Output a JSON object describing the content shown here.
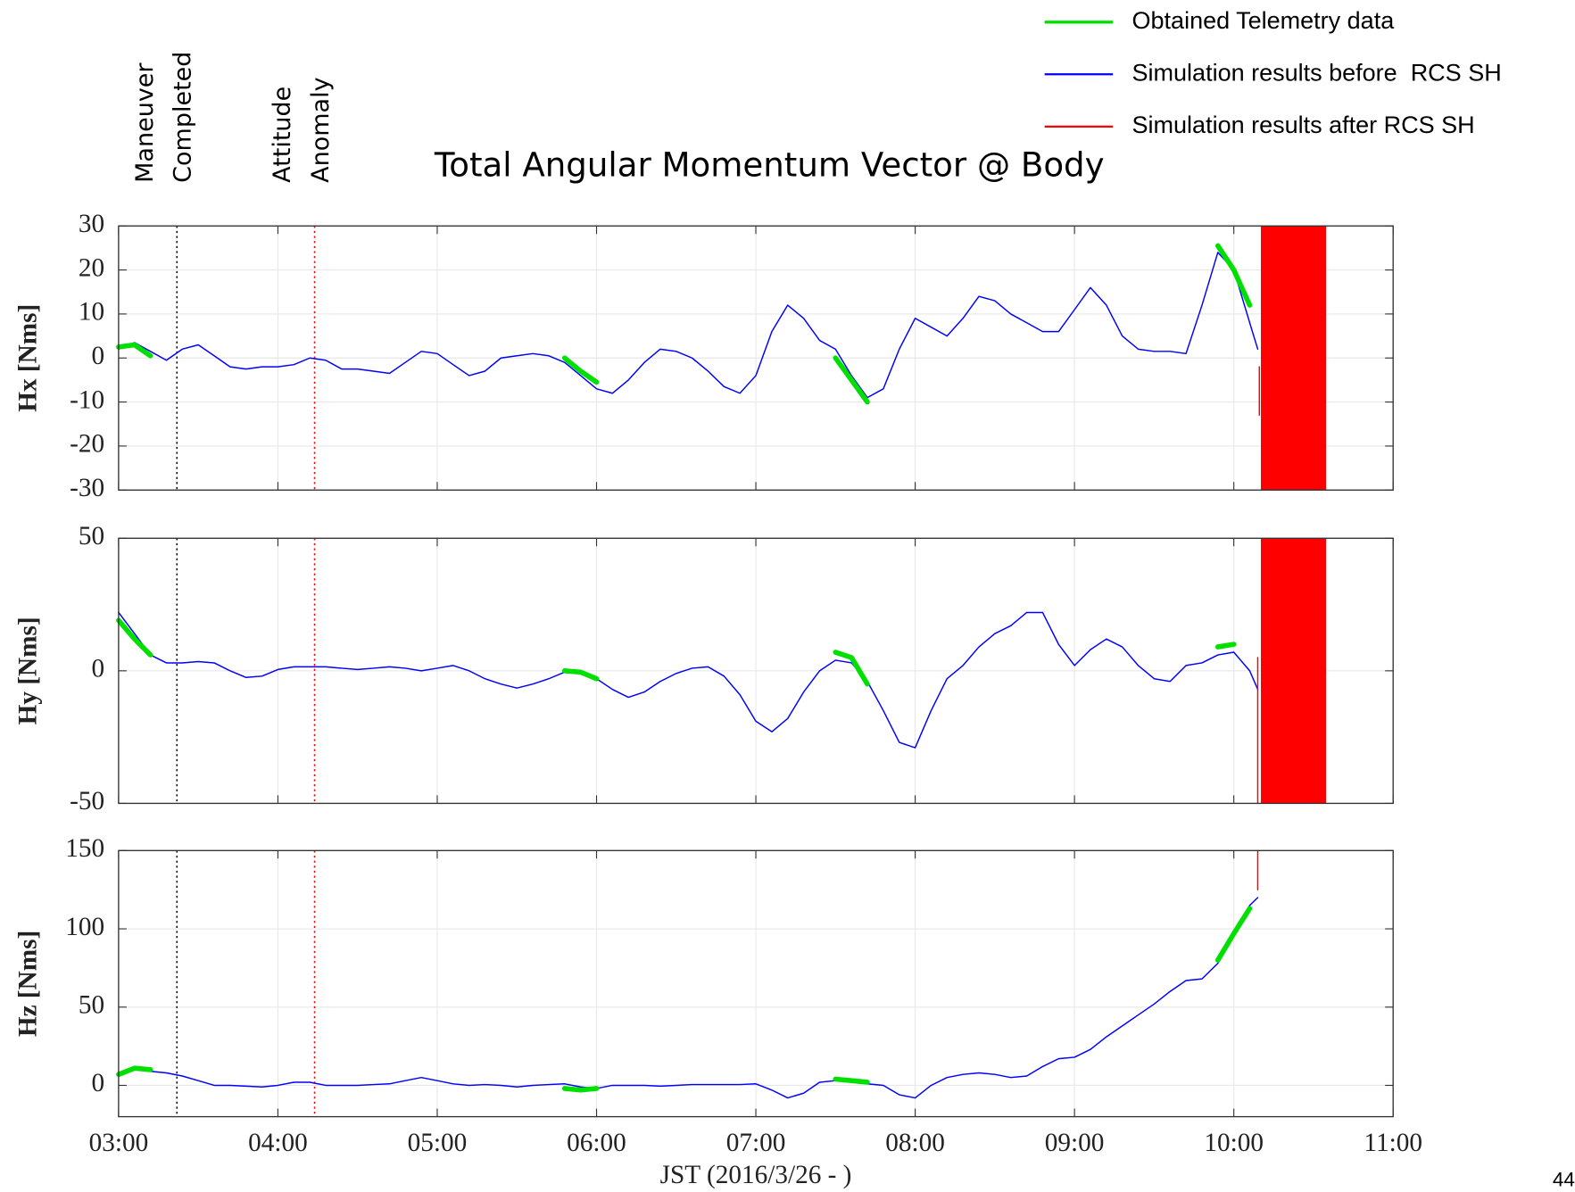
{
  "page_number": "44",
  "chart_data": [
    {
      "type": "line",
      "title": "Total Angular Momentum Vector @ Body",
      "ylabel": "Hx [Nms]",
      "annotations": [
        {
          "x": 3.366,
          "color": "#000000",
          "lines": [
            "Maneuver",
            "Completed"
          ]
        },
        {
          "x": 4.23,
          "color": "#ff0000",
          "lines": [
            "Attitude",
            "Anomaly"
          ]
        }
      ],
      "xlim": [
        3,
        11
      ],
      "ylim": [
        -30,
        30
      ],
      "yticks": [
        -30,
        -20,
        -10,
        0,
        10,
        20,
        30
      ],
      "grid": true,
      "x": [
        3,
        3.1,
        3.2,
        3.3,
        3.4,
        3.5,
        3.6,
        3.7,
        3.8,
        3.9,
        4,
        4.1,
        4.2,
        4.3,
        4.4,
        4.5,
        4.6,
        4.7,
        4.8,
        4.9,
        5,
        5.1,
        5.2,
        5.3,
        5.4,
        5.5,
        5.6,
        5.7,
        5.8,
        5.9,
        6,
        6.1,
        6.2,
        6.3,
        6.4,
        6.5,
        6.6,
        6.7,
        6.8,
        6.9,
        7,
        7.1,
        7.2,
        7.3,
        7.4,
        7.5,
        7.6,
        7.7,
        7.8,
        7.9,
        8,
        8.1,
        8.2,
        8.3,
        8.4,
        8.5,
        8.6,
        8.7,
        8.8,
        8.9,
        9,
        9.1,
        9.2,
        9.3,
        9.4,
        9.5,
        9.6,
        9.7,
        9.8,
        9.9,
        10,
        10.1,
        10.15
      ],
      "series": [
        {
          "name": "Simulation results before  RCS SH",
          "color": "#0000ff",
          "values": [
            2,
            3.5,
            1.5,
            -0.5,
            2,
            3,
            0.5,
            -2,
            -2.5,
            -2,
            -2,
            -1.5,
            0,
            -0.5,
            -2.5,
            -2.5,
            -3,
            -3.5,
            -1,
            1.5,
            1,
            -1.5,
            -4,
            -3,
            0,
            0.5,
            1,
            0.5,
            -1,
            -4,
            -7,
            -8,
            -5,
            -1,
            2,
            1.5,
            0,
            -3,
            -6.5,
            -8,
            -4,
            6,
            12,
            9,
            4,
            2,
            -4,
            -9,
            -7,
            2,
            9,
            7,
            5,
            9,
            14,
            13,
            10,
            8,
            6,
            6,
            11,
            16,
            12,
            5,
            2,
            1.5,
            1.5,
            1,
            12,
            24,
            20,
            8,
            2
          ]
        },
        {
          "name": "Obtained Telemetry data",
          "color": "#00e000",
          "values": [
            2.5,
            3,
            0.5,
            null,
            null,
            null,
            null,
            null,
            null,
            null,
            null,
            null,
            null,
            null,
            null,
            null,
            null,
            null,
            null,
            null,
            null,
            null,
            null,
            null,
            null,
            null,
            null,
            null,
            0,
            -3,
            -5.5,
            null,
            null,
            null,
            null,
            null,
            null,
            null,
            null,
            null,
            null,
            null,
            null,
            null,
            null,
            0,
            -5,
            -10,
            null,
            null,
            null,
            null,
            null,
            null,
            null,
            null,
            null,
            null,
            null,
            null,
            null,
            null,
            null,
            null,
            null,
            null,
            null,
            null,
            null,
            25.5,
            20,
            12,
            null
          ]
        },
        {
          "name": "Simulation results after RCS SH",
          "color": "#ff0000",
          "x": [
            10.16,
            10.16
          ],
          "values": [
            -2,
            -13
          ],
          "band": [
            10.17,
            10.58
          ]
        }
      ]
    },
    {
      "type": "line",
      "ylabel": "Hy [Nms]",
      "xlim": [
        3,
        11
      ],
      "ylim": [
        -50,
        50
      ],
      "yticks": [
        -50,
        0,
        50
      ],
      "grid": true,
      "x": [
        3,
        3.1,
        3.2,
        3.3,
        3.4,
        3.5,
        3.6,
        3.7,
        3.8,
        3.9,
        4,
        4.1,
        4.2,
        4.3,
        4.4,
        4.5,
        4.6,
        4.7,
        4.8,
        4.9,
        5,
        5.1,
        5.2,
        5.3,
        5.4,
        5.5,
        5.6,
        5.7,
        5.8,
        5.9,
        6,
        6.1,
        6.2,
        6.3,
        6.4,
        6.5,
        6.6,
        6.7,
        6.8,
        6.9,
        7,
        7.1,
        7.2,
        7.3,
        7.4,
        7.5,
        7.6,
        7.7,
        7.8,
        7.9,
        8,
        8.1,
        8.2,
        8.3,
        8.4,
        8.5,
        8.6,
        8.7,
        8.8,
        8.9,
        9,
        9.1,
        9.2,
        9.3,
        9.4,
        9.5,
        9.6,
        9.7,
        9.8,
        9.9,
        10,
        10.1,
        10.15
      ],
      "series": [
        {
          "color": "#0000ff",
          "values": [
            22,
            14,
            6,
            3,
            3,
            3.5,
            3,
            0,
            -2.5,
            -2,
            0.5,
            1.5,
            1.5,
            1.5,
            1,
            0.5,
            1,
            1.5,
            1,
            0,
            1,
            2,
            0,
            -3,
            -5,
            -6.5,
            -5,
            -3,
            -0.5,
            -1,
            -3,
            -7,
            -10,
            -8,
            -4,
            -1,
            1,
            1.5,
            -2,
            -9,
            -19,
            -23,
            -18,
            -8,
            0,
            4,
            3,
            -4,
            -15,
            -27,
            -29,
            -15,
            -3,
            2,
            9,
            14,
            17,
            22,
            22,
            10,
            2,
            8,
            12,
            9,
            2,
            -3,
            -4,
            2,
            3,
            6,
            7,
            0,
            -7
          ]
        },
        {
          "color": "#00e000",
          "values": [
            19,
            12,
            6,
            null,
            null,
            null,
            null,
            null,
            null,
            null,
            null,
            null,
            null,
            null,
            null,
            null,
            null,
            null,
            null,
            null,
            null,
            null,
            null,
            null,
            null,
            null,
            null,
            null,
            0,
            -0.5,
            -3,
            null,
            null,
            null,
            null,
            null,
            null,
            null,
            null,
            null,
            null,
            null,
            null,
            null,
            null,
            7,
            5,
            -5,
            null,
            null,
            null,
            null,
            null,
            null,
            null,
            null,
            null,
            null,
            null,
            null,
            null,
            null,
            null,
            null,
            null,
            null,
            null,
            null,
            null,
            9,
            10,
            null,
            null
          ]
        },
        {
          "color": "#ff0000",
          "x": [
            10.15,
            10.15
          ],
          "values": [
            5,
            -50
          ],
          "band": [
            10.17,
            10.58
          ]
        }
      ]
    },
    {
      "type": "line",
      "ylabel": "Hz [Nms]",
      "xlabel": "JST (2016/3/26 - )",
      "xlim": [
        3,
        11
      ],
      "ylim": [
        -20,
        150
      ],
      "yticks": [
        0,
        50,
        100,
        150
      ],
      "grid": true,
      "xticks": [
        {
          "value": 3,
          "label": "03:00"
        },
        {
          "value": 4,
          "label": "04:00"
        },
        {
          "value": 5,
          "label": "05:00"
        },
        {
          "value": 6,
          "label": "06:00"
        },
        {
          "value": 7,
          "label": "07:00"
        },
        {
          "value": 8,
          "label": "08:00"
        },
        {
          "value": 9,
          "label": "09:00"
        },
        {
          "value": 10,
          "label": "10:00"
        },
        {
          "value": 11,
          "label": "11:00"
        }
      ],
      "x": [
        3,
        3.1,
        3.2,
        3.3,
        3.4,
        3.5,
        3.6,
        3.7,
        3.8,
        3.9,
        4,
        4.1,
        4.2,
        4.3,
        4.4,
        4.5,
        4.6,
        4.7,
        4.8,
        4.9,
        5,
        5.1,
        5.2,
        5.3,
        5.4,
        5.5,
        5.6,
        5.7,
        5.8,
        5.9,
        6,
        6.1,
        6.2,
        6.3,
        6.4,
        6.5,
        6.6,
        6.7,
        6.8,
        6.9,
        7,
        7.1,
        7.2,
        7.3,
        7.4,
        7.5,
        7.6,
        7.7,
        7.8,
        7.9,
        8,
        8.1,
        8.2,
        8.3,
        8.4,
        8.5,
        8.6,
        8.7,
        8.8,
        8.9,
        9,
        9.1,
        9.2,
        9.3,
        9.4,
        9.5,
        9.6,
        9.7,
        9.8,
        9.9,
        10,
        10.1,
        10.15
      ],
      "series": [
        {
          "color": "#0000ff",
          "values": [
            6,
            10,
            9,
            8,
            6,
            3,
            0,
            0,
            -0.5,
            -1,
            0,
            2,
            2,
            0,
            0,
            0,
            0.5,
            1,
            3,
            5,
            3,
            1,
            0,
            0.5,
            0,
            -1,
            0,
            0.5,
            1,
            -1,
            -2,
            0,
            0,
            0,
            -0.5,
            0,
            0.5,
            0.5,
            0.5,
            0.5,
            1,
            -3,
            -8,
            -5,
            2,
            3,
            2,
            1,
            0,
            -6,
            -8,
            0,
            5,
            7,
            8,
            7,
            5,
            6,
            12,
            17,
            18,
            23,
            31,
            38,
            45,
            52,
            60,
            67,
            68,
            78,
            95,
            115,
            120
          ]
        },
        {
          "color": "#00e000",
          "values": [
            7,
            11,
            10,
            null,
            null,
            null,
            null,
            null,
            null,
            null,
            null,
            null,
            null,
            null,
            null,
            null,
            null,
            null,
            null,
            null,
            null,
            null,
            null,
            null,
            null,
            null,
            null,
            null,
            -2,
            -3,
            -2,
            null,
            null,
            null,
            null,
            null,
            null,
            null,
            null,
            null,
            null,
            null,
            null,
            null,
            null,
            4,
            3,
            2,
            null,
            null,
            null,
            null,
            null,
            null,
            null,
            null,
            null,
            null,
            null,
            null,
            null,
            null,
            null,
            null,
            null,
            null,
            null,
            null,
            null,
            80,
            97,
            113,
            null
          ]
        },
        {
          "color": "#ff0000",
          "x": [
            10.15,
            10.15
          ],
          "values": [
            125,
            150
          ]
        }
      ]
    }
  ]
}
